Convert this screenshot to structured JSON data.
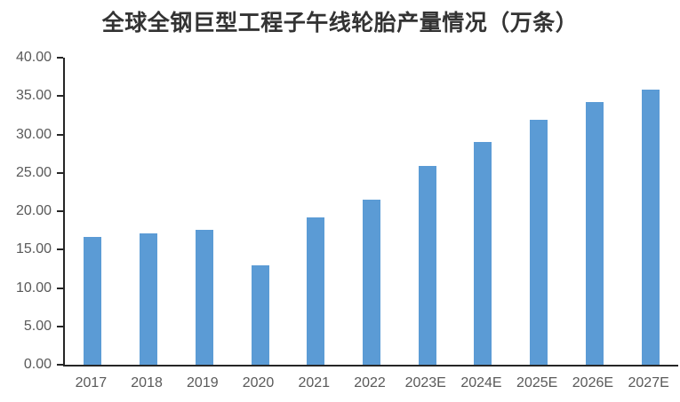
{
  "chart_data": {
    "type": "bar",
    "title": "全球全钢巨型工程子午线轮胎产量情况（万条）",
    "categories": [
      "2017",
      "2018",
      "2019",
      "2020",
      "2021",
      "2022",
      "2023E",
      "2024E",
      "2025E",
      "2026E",
      "2027E"
    ],
    "values": [
      16.7,
      17.1,
      17.6,
      13.0,
      19.2,
      21.5,
      25.9,
      29.0,
      31.9,
      34.2,
      35.8
    ],
    "xlabel": "",
    "ylabel": "",
    "ylim": [
      0,
      40
    ],
    "ytick_step": 5,
    "ytick_decimals": 2,
    "grid": false,
    "legend_position": "none",
    "colors": {
      "bar": "#5B9BD5",
      "axis": "#262626",
      "tick_label": "#595959",
      "title": "#333333",
      "background": "#ffffff"
    }
  }
}
